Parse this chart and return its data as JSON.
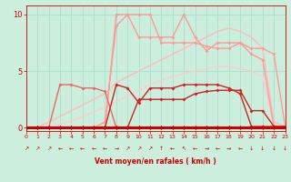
{
  "background_color": "#cceedd",
  "grid_color": "#aaddcc",
  "xlabel": "Vent moyen/en rafales ( km/h )",
  "xlim": [
    0,
    23
  ],
  "ylim": [
    -0.3,
    10.8
  ],
  "yticks": [
    0,
    5,
    10
  ],
  "xticks": [
    0,
    1,
    2,
    3,
    4,
    5,
    6,
    7,
    8,
    9,
    10,
    11,
    12,
    13,
    14,
    15,
    16,
    17,
    18,
    19,
    20,
    21,
    22,
    23
  ],
  "x": [
    0,
    1,
    2,
    3,
    4,
    5,
    6,
    7,
    8,
    9,
    10,
    11,
    12,
    13,
    14,
    15,
    16,
    17,
    18,
    19,
    20,
    21,
    22,
    23
  ],
  "lines": [
    {
      "y": [
        0,
        0,
        0,
        0,
        0,
        0,
        0,
        0,
        0,
        0,
        0,
        0,
        0,
        0,
        0,
        0,
        0,
        0,
        0,
        0,
        0,
        0,
        0,
        0
      ],
      "color": "#cc0000",
      "lw": 2.2,
      "marker": "D",
      "ms": 2.5,
      "zorder": 10
    },
    {
      "y": [
        0,
        0,
        0,
        0,
        0,
        0,
        0,
        0,
        0,
        0,
        2.5,
        2.5,
        2.5,
        2.5,
        2.5,
        3.0,
        3.2,
        3.3,
        3.3,
        3.3,
        1.5,
        1.5,
        0.1,
        0.1
      ],
      "color": "#cc2222",
      "lw": 1.0,
      "marker": "D",
      "ms": 2.0,
      "zorder": 9
    },
    {
      "y": [
        0,
        0,
        0,
        0,
        0,
        0,
        0,
        0,
        3.8,
        3.5,
        2.2,
        3.5,
        3.5,
        3.5,
        3.8,
        3.8,
        3.8,
        3.8,
        3.5,
        3.0,
        0.1,
        0.1,
        0.1,
        0.1
      ],
      "color": "#cc2222",
      "lw": 1.0,
      "marker": "D",
      "ms": 2.0,
      "zorder": 9
    },
    {
      "y": [
        0,
        0,
        0,
        3.8,
        3.8,
        3.5,
        3.5,
        3.2,
        0,
        0,
        0,
        0,
        0,
        0,
        0,
        0,
        0,
        0,
        0,
        0,
        0,
        0,
        0,
        0
      ],
      "color": "#ee6666",
      "lw": 1.0,
      "marker": "D",
      "ms": 2.0,
      "zorder": 8
    },
    {
      "y": [
        0,
        0,
        0,
        0,
        0,
        0,
        0,
        0,
        10,
        10,
        8,
        8,
        8,
        8,
        10,
        8,
        6.8,
        7.5,
        7.5,
        7.5,
        6.5,
        6,
        0,
        0
      ],
      "color": "#ff9999",
      "lw": 1.0,
      "marker": "D",
      "ms": 2.0,
      "zorder": 7
    },
    {
      "y": [
        0,
        0,
        0,
        0,
        0,
        0,
        0,
        0.5,
        9,
        10,
        10,
        10,
        7.5,
        7.5,
        7.5,
        7.5,
        7.2,
        7.0,
        7.0,
        7.5,
        7.0,
        7.0,
        6.5,
        0.1
      ],
      "color": "#ff9999",
      "lw": 1.0,
      "marker": "D",
      "ms": 2.0,
      "zorder": 7
    },
    {
      "y": [
        0,
        0,
        0.5,
        1.0,
        1.5,
        2.0,
        2.5,
        3.0,
        4.0,
        4.5,
        5.0,
        5.5,
        6.0,
        6.5,
        7.0,
        7.5,
        8.0,
        8.5,
        8.8,
        8.5,
        8.0,
        7.0,
        0.5,
        0.1
      ],
      "color": "#ffbbbb",
      "lw": 1.0,
      "marker": "None",
      "ms": 0,
      "zorder": 5
    },
    {
      "y": [
        0,
        0,
        0,
        0.3,
        0.6,
        1.0,
        1.4,
        1.8,
        2.3,
        2.8,
        3.3,
        3.8,
        4.2,
        4.5,
        4.8,
        5.0,
        5.2,
        5.4,
        5.4,
        5.2,
        5.0,
        4.5,
        0.2,
        0.0
      ],
      "color": "#ffcccc",
      "lw": 1.0,
      "marker": "None",
      "ms": 0,
      "zorder": 4
    }
  ],
  "wind_icons": [
    "↗",
    "↗",
    "↗",
    "←",
    "←",
    "←",
    "←",
    "←",
    "→",
    "↗",
    "↗",
    "↗",
    "↑",
    "←",
    "↖",
    "←",
    "→",
    "←",
    "→",
    "←",
    "↓",
    "↓",
    "↓",
    "↓"
  ],
  "text_color": "#cc0000"
}
